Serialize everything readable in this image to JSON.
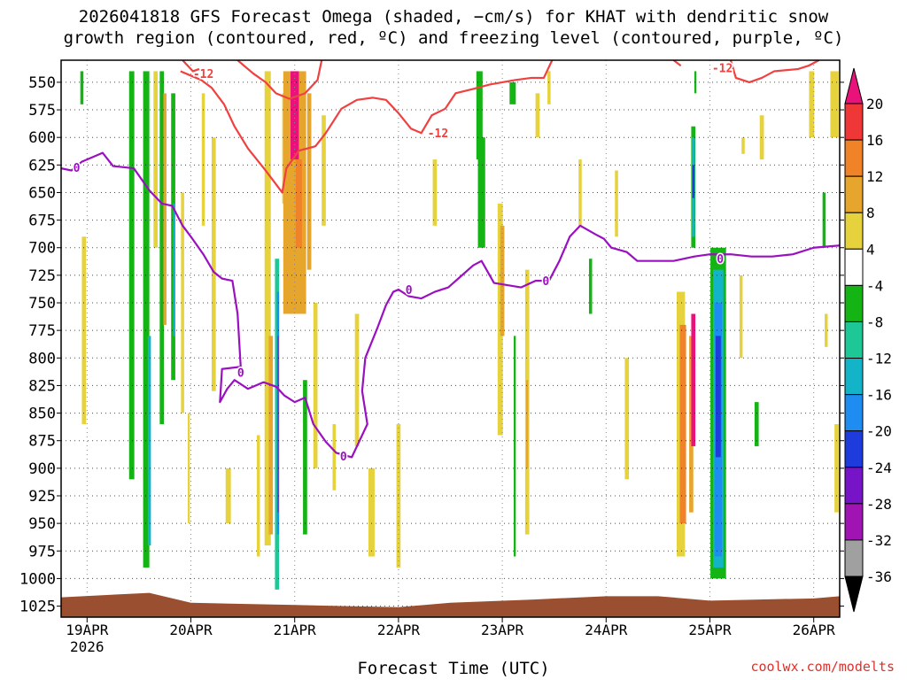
{
  "chart_data": {
    "type": "heatmap",
    "title_line1": "2026041818 GFS Forecast Omega (shaded, −cm/s) for KHAT with dendritic snow",
    "title_line2": "growth region (contoured, red, ºC) and freezing level (contoured, purple, ºC)",
    "xlabel": "Forecast Time (UTC)",
    "ylabel": "",
    "credit": "coolwx.com/modelts",
    "x_ticks": [
      {
        "day": 0,
        "label": "19APR",
        "sub": "2026"
      },
      {
        "day": 1,
        "label": "20APR"
      },
      {
        "day": 2,
        "label": "21APR"
      },
      {
        "day": 3,
        "label": "22APR"
      },
      {
        "day": 4,
        "label": "23APR"
      },
      {
        "day": 5,
        "label": "24APR"
      },
      {
        "day": 6,
        "label": "25APR"
      },
      {
        "day": 7,
        "label": "26APR"
      }
    ],
    "xlim": [
      -0.25,
      7.25
    ],
    "y_ticks": [
      550,
      575,
      600,
      625,
      650,
      675,
      700,
      725,
      750,
      775,
      800,
      825,
      850,
      875,
      900,
      925,
      950,
      975,
      1000,
      1025
    ],
    "ylim": [
      530,
      1035
    ],
    "colorbar_ticks": [
      20,
      16,
      12,
      8,
      4,
      -4,
      -8,
      -12,
      -16,
      -20,
      -24,
      -28,
      -32,
      -36
    ],
    "colorbar_colors": [
      "#e8127a",
      "#f03737",
      "#f08228",
      "#e6a52d",
      "#e6d23c",
      "#ffffff",
      "#14b414",
      "#1ec896",
      "#14b4c8",
      "#1e8cf0",
      "#1e3cdc",
      "#7814c8",
      "#a014b4",
      "#a0a0a0"
    ],
    "colorbar_bounds": {
      "top": "#e8127a",
      "bottom": "#000000"
    },
    "omega_cells": [
      {
        "t": -0.05,
        "w": 0.03,
        "p0": 540,
        "p1": 570,
        "v": -6
      },
      {
        "t": -0.03,
        "w": 0.04,
        "p0": 690,
        "p1": 860,
        "v": 5
      },
      {
        "t": 0.43,
        "w": 0.05,
        "p0": 540,
        "p1": 910,
        "v": -6
      },
      {
        "t": 0.57,
        "w": 0.06,
        "p0": 540,
        "p1": 990,
        "v": -7
      },
      {
        "t": 0.6,
        "w": 0.03,
        "p0": 780,
        "p1": 970,
        "v": -14
      },
      {
        "t": 0.66,
        "w": 0.04,
        "p0": 540,
        "p1": 700,
        "v": 6
      },
      {
        "t": 0.72,
        "w": 0.04,
        "p0": 540,
        "p1": 860,
        "v": -7
      },
      {
        "t": 0.75,
        "w": 0.03,
        "p0": 560,
        "p1": 770,
        "v": 10
      },
      {
        "t": 0.83,
        "w": 0.04,
        "p0": 560,
        "p1": 820,
        "v": -7
      },
      {
        "t": 0.84,
        "w": 0.02,
        "p0": 660,
        "p1": 780,
        "v": -14
      },
      {
        "t": 0.92,
        "w": 0.03,
        "p0": 650,
        "p1": 850,
        "v": 5
      },
      {
        "t": 0.98,
        "w": 0.02,
        "p0": 850,
        "p1": 950,
        "v": 5
      },
      {
        "t": 1.12,
        "w": 0.03,
        "p0": 560,
        "p1": 680,
        "v": 5
      },
      {
        "t": 1.22,
        "w": 0.04,
        "p0": 600,
        "p1": 830,
        "v": 5
      },
      {
        "t": 1.36,
        "w": 0.05,
        "p0": 900,
        "p1": 950,
        "v": 5
      },
      {
        "t": 1.65,
        "w": 0.03,
        "p0": 870,
        "p1": 980,
        "v": 5
      },
      {
        "t": 1.74,
        "w": 0.06,
        "p0": 540,
        "p1": 970,
        "v": 6
      },
      {
        "t": 1.77,
        "w": 0.04,
        "p0": 780,
        "p1": 960,
        "v": 11
      },
      {
        "t": 1.83,
        "w": 0.04,
        "p0": 710,
        "p1": 1010,
        "v": -8
      },
      {
        "t": 1.84,
        "w": 0.02,
        "p0": 740,
        "p1": 960,
        "v": -18
      },
      {
        "t": 1.84,
        "w": 0.01,
        "p0": 780,
        "p1": 940,
        "v": -30
      },
      {
        "t": 1.9,
        "w": 0.04,
        "p0": 560,
        "p1": 660,
        "v": 6
      },
      {
        "t": 2.0,
        "w": 0.22,
        "p0": 540,
        "p1": 760,
        "v": 8
      },
      {
        "t": 2.0,
        "w": 0.08,
        "p0": 540,
        "p1": 620,
        "v": 21
      },
      {
        "t": 2.04,
        "w": 0.06,
        "p0": 620,
        "p1": 700,
        "v": 14
      },
      {
        "t": 2.14,
        "w": 0.04,
        "p0": 560,
        "p1": 720,
        "v": 10
      },
      {
        "t": 2.1,
        "w": 0.04,
        "p0": 820,
        "p1": 960,
        "v": -7
      },
      {
        "t": 2.2,
        "w": 0.04,
        "p0": 750,
        "p1": 900,
        "v": 6
      },
      {
        "t": 2.28,
        "w": 0.04,
        "p0": 580,
        "p1": 680,
        "v": 5
      },
      {
        "t": 2.38,
        "w": 0.03,
        "p0": 860,
        "p1": 920,
        "v": 5
      },
      {
        "t": 2.6,
        "w": 0.04,
        "p0": 760,
        "p1": 880,
        "v": 5
      },
      {
        "t": 2.74,
        "w": 0.06,
        "p0": 900,
        "p1": 980,
        "v": 5
      },
      {
        "t": 3.0,
        "w": 0.04,
        "p0": 860,
        "p1": 990,
        "v": 5
      },
      {
        "t": 3.35,
        "w": 0.04,
        "p0": 620,
        "p1": 680,
        "v": 5
      },
      {
        "t": 3.78,
        "w": 0.06,
        "p0": 540,
        "p1": 620,
        "v": -7
      },
      {
        "t": 3.8,
        "w": 0.07,
        "p0": 600,
        "p1": 700,
        "v": -7
      },
      {
        "t": 3.98,
        "w": 0.05,
        "p0": 660,
        "p1": 870,
        "v": 5
      },
      {
        "t": 4.0,
        "w": 0.04,
        "p0": 680,
        "p1": 780,
        "v": 10
      },
      {
        "t": 4.1,
        "w": 0.06,
        "p0": 550,
        "p1": 570,
        "v": -7
      },
      {
        "t": 4.12,
        "w": 0.02,
        "p0": 780,
        "p1": 980,
        "v": -7
      },
      {
        "t": 4.24,
        "w": 0.04,
        "p0": 720,
        "p1": 960,
        "v": 6
      },
      {
        "t": 4.24,
        "w": 0.02,
        "p0": 820,
        "p1": 900,
        "v": 10
      },
      {
        "t": 4.34,
        "w": 0.04,
        "p0": 560,
        "p1": 600,
        "v": 5
      },
      {
        "t": 4.45,
        "w": 0.03,
        "p0": 540,
        "p1": 570,
        "v": 5
      },
      {
        "t": 4.75,
        "w": 0.03,
        "p0": 620,
        "p1": 680,
        "v": 5
      },
      {
        "t": 4.85,
        "w": 0.03,
        "p0": 710,
        "p1": 760,
        "v": -7
      },
      {
        "t": 5.1,
        "w": 0.03,
        "p0": 630,
        "p1": 690,
        "v": 5
      },
      {
        "t": 5.2,
        "w": 0.04,
        "p0": 800,
        "p1": 910,
        "v": 5
      },
      {
        "t": 5.72,
        "w": 0.08,
        "p0": 740,
        "p1": 980,
        "v": 6
      },
      {
        "t": 5.74,
        "w": 0.06,
        "p0": 770,
        "p1": 950,
        "v": 12
      },
      {
        "t": 5.82,
        "w": 0.04,
        "p0": 780,
        "p1": 940,
        "v": 9
      },
      {
        "t": 5.84,
        "w": 0.04,
        "p0": 760,
        "p1": 880,
        "v": 21
      },
      {
        "t": 5.84,
        "w": 0.04,
        "p0": 590,
        "p1": 700,
        "v": -7
      },
      {
        "t": 5.84,
        "w": 0.03,
        "p0": 600,
        "p1": 690,
        "v": -14
      },
      {
        "t": 5.84,
        "w": 0.02,
        "p0": 625,
        "p1": 655,
        "v": -22
      },
      {
        "t": 5.86,
        "w": 0.02,
        "p0": 540,
        "p1": 560,
        "v": -7
      },
      {
        "t": 6.08,
        "w": 0.15,
        "p0": 700,
        "p1": 1000,
        "v": -7
      },
      {
        "t": 6.08,
        "w": 0.1,
        "p0": 720,
        "p1": 990,
        "v": -14
      },
      {
        "t": 6.08,
        "w": 0.07,
        "p0": 750,
        "p1": 980,
        "v": -18
      },
      {
        "t": 6.08,
        "w": 0.05,
        "p0": 780,
        "p1": 890,
        "v": -22
      },
      {
        "t": 6.3,
        "w": 0.03,
        "p0": 725,
        "p1": 800,
        "v": 5
      },
      {
        "t": 6.32,
        "w": 0.03,
        "p0": 600,
        "p1": 615,
        "v": 5
      },
      {
        "t": 6.45,
        "w": 0.04,
        "p0": 840,
        "p1": 880,
        "v": -7
      },
      {
        "t": 6.5,
        "w": 0.04,
        "p0": 580,
        "p1": 620,
        "v": 5
      },
      {
        "t": 6.98,
        "w": 0.05,
        "p0": 540,
        "p1": 600,
        "v": 5
      },
      {
        "t": 7.1,
        "w": 0.03,
        "p0": 650,
        "p1": 700,
        "v": -7
      },
      {
        "t": 7.12,
        "w": 0.03,
        "p0": 760,
        "p1": 790,
        "v": 5
      },
      {
        "t": 7.2,
        "w": 0.08,
        "p0": 540,
        "p1": 600,
        "v": 5
      },
      {
        "t": 7.22,
        "w": 0.04,
        "p0": 860,
        "p1": 940,
        "v": 6
      }
    ],
    "freezing_level": {
      "label": "0",
      "points": [
        [
          -0.25,
          628
        ],
        [
          -0.15,
          630
        ],
        [
          -0.05,
          622
        ],
        [
          0.15,
          614
        ],
        [
          0.25,
          626
        ],
        [
          0.45,
          628
        ],
        [
          0.6,
          648
        ],
        [
          0.72,
          660
        ],
        [
          0.82,
          662
        ],
        [
          0.92,
          680
        ],
        [
          1.0,
          690
        ],
        [
          1.12,
          706
        ],
        [
          1.22,
          722
        ],
        [
          1.3,
          728
        ],
        [
          1.4,
          730
        ],
        [
          1.45,
          760
        ],
        [
          1.48,
          808
        ],
        [
          1.3,
          810
        ],
        [
          1.28,
          840
        ],
        [
          1.35,
          828
        ],
        [
          1.42,
          820
        ],
        [
          1.55,
          828
        ],
        [
          1.7,
          822
        ],
        [
          1.82,
          826
        ],
        [
          1.9,
          834
        ],
        [
          2.0,
          840
        ],
        [
          2.1,
          836
        ],
        [
          2.18,
          860
        ],
        [
          2.3,
          876
        ],
        [
          2.4,
          886
        ],
        [
          2.55,
          890
        ],
        [
          2.7,
          860
        ],
        [
          2.65,
          830
        ],
        [
          2.68,
          800
        ],
        [
          2.8,
          772
        ],
        [
          2.88,
          752
        ],
        [
          2.95,
          740
        ],
        [
          3.0,
          738
        ],
        [
          3.1,
          744
        ],
        [
          3.22,
          746
        ],
        [
          3.35,
          740
        ],
        [
          3.48,
          736
        ],
        [
          3.6,
          726
        ],
        [
          3.72,
          716
        ],
        [
          3.8,
          712
        ],
        [
          3.92,
          732
        ],
        [
          4.05,
          734
        ],
        [
          4.18,
          736
        ],
        [
          4.32,
          730
        ],
        [
          4.45,
          730
        ],
        [
          4.55,
          712
        ],
        [
          4.65,
          690
        ],
        [
          4.75,
          680
        ],
        [
          4.9,
          688
        ],
        [
          4.98,
          692
        ],
        [
          5.05,
          700
        ],
        [
          5.2,
          704
        ],
        [
          5.3,
          712
        ],
        [
          5.45,
          712
        ],
        [
          5.65,
          712
        ],
        [
          5.85,
          708
        ],
        [
          6.0,
          706
        ],
        [
          6.2,
          706
        ],
        [
          6.4,
          708
        ],
        [
          6.6,
          708
        ],
        [
          6.8,
          706
        ],
        [
          7.0,
          700
        ],
        [
          7.25,
          698
        ]
      ]
    },
    "dgz_contours": [
      {
        "label": "-12",
        "points": [
          [
            0.9,
            540
          ],
          [
            1.0,
            544
          ],
          [
            1.1,
            548
          ],
          [
            1.2,
            555
          ],
          [
            1.32,
            570
          ],
          [
            1.42,
            590
          ],
          [
            1.55,
            610
          ],
          [
            1.72,
            630
          ],
          [
            1.88,
            650
          ],
          [
            1.92,
            628
          ],
          [
            2.04,
            612
          ],
          [
            2.2,
            608
          ],
          [
            2.3,
            596
          ],
          [
            2.45,
            574
          ],
          [
            2.6,
            566
          ],
          [
            2.75,
            564
          ],
          [
            2.88,
            566
          ],
          [
            3.0,
            578
          ],
          [
            3.12,
            592
          ],
          [
            3.22,
            596
          ],
          [
            3.32,
            580
          ],
          [
            3.45,
            574
          ],
          [
            3.55,
            560
          ],
          [
            3.72,
            556
          ],
          [
            3.88,
            552
          ],
          [
            4.0,
            550
          ],
          [
            4.12,
            548
          ],
          [
            4.28,
            546
          ],
          [
            4.4,
            546
          ],
          [
            4.48,
            530
          ]
        ]
      },
      {
        "label": "-12",
        "points": [
          [
            1.45,
            530
          ],
          [
            1.6,
            542
          ],
          [
            1.72,
            550
          ],
          [
            1.82,
            560
          ],
          [
            1.95,
            565
          ],
          [
            2.1,
            560
          ],
          [
            2.22,
            548
          ],
          [
            2.26,
            530
          ]
        ]
      },
      {
        "label": "-12",
        "points": [
          [
            0.92,
            530
          ],
          [
            1.02,
            540
          ],
          [
            1.08,
            538
          ]
        ]
      },
      {
        "label": "-12",
        "points": [
          [
            5.65,
            530
          ],
          [
            5.72,
            535
          ]
        ]
      },
      {
        "label": "-12",
        "points": [
          [
            6.2,
            530
          ],
          [
            6.25,
            546
          ],
          [
            6.38,
            550
          ],
          [
            6.5,
            546
          ],
          [
            6.62,
            540
          ],
          [
            6.85,
            538
          ],
          [
            6.95,
            535
          ],
          [
            7.05,
            530
          ]
        ]
      }
    ],
    "contour_labels": [
      {
        "label": "-12",
        "t": 1.12,
        "p": 542
      },
      {
        "label": "-12",
        "t": 3.38,
        "p": 596
      },
      {
        "label": "-12",
        "t": 6.12,
        "p": 537
      },
      {
        "label": "0",
        "t": -0.1,
        "p": 627
      },
      {
        "label": "0",
        "t": 1.48,
        "p": 813
      },
      {
        "label": "0",
        "t": 2.47,
        "p": 889
      },
      {
        "label": "0",
        "t": 3.1,
        "p": 738
      },
      {
        "label": "0",
        "t": 4.42,
        "p": 730
      },
      {
        "label": "0",
        "t": 6.1,
        "p": 710
      }
    ],
    "ground": {
      "color": "#9a5030",
      "points": [
        [
          -0.25,
          1017
        ],
        [
          0.6,
          1013
        ],
        [
          1.0,
          1022
        ],
        [
          2.0,
          1024
        ],
        [
          3.0,
          1026
        ],
        [
          3.5,
          1022
        ],
        [
          4.3,
          1019
        ],
        [
          5.0,
          1016
        ],
        [
          5.5,
          1016
        ],
        [
          6.0,
          1020
        ],
        [
          7.0,
          1018
        ],
        [
          7.25,
          1016
        ]
      ]
    }
  }
}
